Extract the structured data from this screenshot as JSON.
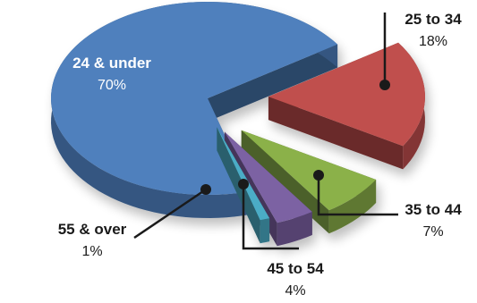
{
  "chart_data": {
    "type": "pie",
    "title": "",
    "slices": [
      {
        "name": "24 & under",
        "value": 70,
        "value_label": "70%",
        "color": "#4f80bd"
      },
      {
        "name": "25 to 34",
        "value": 18,
        "value_label": "18%",
        "color": "#c0504d"
      },
      {
        "name": "35 to 44",
        "value": 7,
        "value_label": "7%",
        "color": "#8bb14a"
      },
      {
        "name": "45 to 54",
        "value": 4,
        "value_label": "4%",
        "color": "#7b62a3"
      },
      {
        "name": "55 & over",
        "value": 1,
        "value_label": "1%",
        "color": "#4bacc6"
      }
    ],
    "style": "3d-exploded",
    "legend": "none",
    "label_text_color_inside": "#ffffff",
    "label_text_color_outside": "#1a1a1a",
    "leader_line_color": "#1a1a1a"
  }
}
